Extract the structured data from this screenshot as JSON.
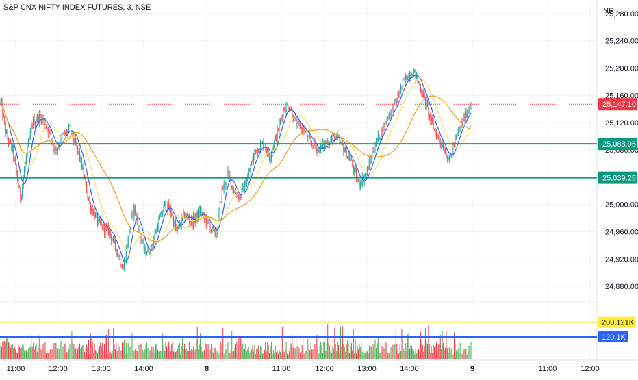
{
  "header": {
    "symbol_title": "S&P CNX NIFTY INDEX FUTURES, 3, NSE",
    "currency": "INR"
  },
  "colors": {
    "up": "#26a69a",
    "down": "#ef5350",
    "volume_up": "#4caf50",
    "volume_down": "#f23645",
    "ma_blue": "#2962ff",
    "ma_yellow": "#f7e26b",
    "ma_orange": "#f39c12",
    "level_line": "#089981",
    "current_price": "#f23645",
    "vol_level_yellow": "#ffeb3b",
    "vol_level_blue": "#2962ff",
    "grid": "#f0f3fa"
  },
  "chart_data": {
    "type": "candlestick",
    "timeframe": "3",
    "x_ticks": [
      "11:00",
      "12:00",
      "13:00",
      "14:00",
      "8",
      "11:00",
      "12:00",
      "13:00",
      "14:00",
      "9",
      "11:00",
      "12:00"
    ],
    "price_axis": {
      "ticks": [
        "25,280.00",
        "25,240.00",
        "25,200.00",
        "25,160.00",
        "25,120.00",
        "25,080.00",
        "25,000.00",
        "24,960.00",
        "24,920.00",
        "24,880.00"
      ],
      "range": [
        24860,
        25300
      ]
    },
    "price_labels": [
      {
        "label": "25,147.10",
        "value": 25147.1,
        "role": "current-price"
      },
      {
        "label": "25,088.95",
        "value": 25088.95,
        "role": "support-level"
      },
      {
        "label": "25,039.25",
        "value": 25039.25,
        "role": "support-level"
      }
    ],
    "volume_labels": [
      {
        "label": "200.121K",
        "value": 200.121,
        "role": "volume-level-high"
      },
      {
        "label": "120.1K",
        "value": 120.1,
        "role": "volume-level-average"
      }
    ],
    "volume_range_k": [
      0,
      315
    ],
    "anchors": [
      [
        0,
        25150
      ],
      [
        6,
        25100
      ],
      [
        12,
        25080
      ],
      [
        20,
        25010
      ],
      [
        26,
        25070
      ],
      [
        32,
        25120
      ],
      [
        40,
        25130
      ],
      [
        48,
        25110
      ],
      [
        55,
        25080
      ],
      [
        62,
        25100
      ],
      [
        70,
        25110
      ],
      [
        80,
        25070
      ],
      [
        90,
        25000
      ],
      [
        100,
        24970
      ],
      [
        110,
        24960
      ],
      [
        118,
        24930
      ],
      [
        124,
        24905
      ],
      [
        130,
        24960
      ],
      [
        135,
        24995
      ],
      [
        140,
        24960
      ],
      [
        146,
        24930
      ],
      [
        152,
        24935
      ],
      [
        158,
        24965
      ],
      [
        166,
        25000
      ],
      [
        172,
        24990
      ],
      [
        178,
        24960
      ],
      [
        186,
        24985
      ],
      [
        194,
        24975
      ],
      [
        202,
        24990
      ],
      [
        210,
        24970
      ],
      [
        218,
        24955
      ],
      [
        224,
        25020
      ],
      [
        230,
        25045
      ],
      [
        236,
        25020
      ],
      [
        242,
        25010
      ],
      [
        250,
        25040
      ],
      [
        258,
        25080
      ],
      [
        266,
        25090
      ],
      [
        272,
        25070
      ],
      [
        280,
        25105
      ],
      [
        286,
        25140
      ],
      [
        292,
        25145
      ],
      [
        298,
        25120
      ],
      [
        306,
        25110
      ],
      [
        314,
        25090
      ],
      [
        322,
        25080
      ],
      [
        330,
        25090
      ],
      [
        338,
        25100
      ],
      [
        346,
        25085
      ],
      [
        354,
        25065
      ],
      [
        362,
        25030
      ],
      [
        370,
        25045
      ],
      [
        378,
        25085
      ],
      [
        386,
        25110
      ],
      [
        392,
        25130
      ],
      [
        400,
        25150
      ],
      [
        406,
        25175
      ],
      [
        412,
        25190
      ],
      [
        418,
        25195
      ],
      [
        424,
        25175
      ],
      [
        430,
        25150
      ],
      [
        436,
        25120
      ],
      [
        442,
        25100
      ],
      [
        448,
        25085
      ],
      [
        454,
        25065
      ],
      [
        458,
        25085
      ],
      [
        464,
        25110
      ],
      [
        470,
        25130
      ],
      [
        476,
        25147.1
      ]
    ],
    "moving_averages": [
      {
        "color_key": "ma_blue",
        "period": 9
      },
      {
        "color_key": "ma_yellow",
        "period": 20
      },
      {
        "color_key": "ma_orange",
        "period": 50
      }
    ]
  }
}
